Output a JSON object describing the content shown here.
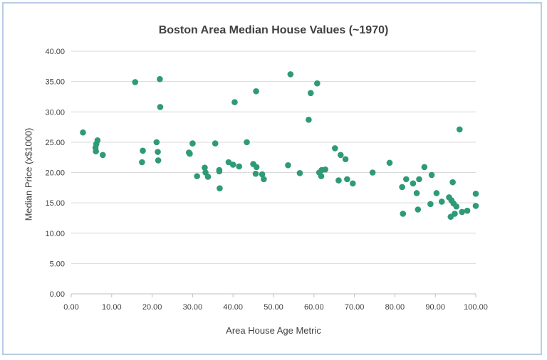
{
  "chart_data": {
    "type": "scatter",
    "title": "Boston Area Median House Values (~1970)",
    "xlabel": "Area House Age Metric",
    "ylabel": "Median Price (x$1000)",
    "xlim": [
      0,
      100
    ],
    "ylim": [
      0,
      40
    ],
    "x_ticks": [
      "0.00",
      "10.00",
      "20.00",
      "30.00",
      "40.00",
      "50.00",
      "60.00",
      "70.00",
      "80.00",
      "90.00",
      "100.00"
    ],
    "y_ticks": [
      "0.00",
      "5.00",
      "10.00",
      "15.00",
      "20.00",
      "25.00",
      "30.00",
      "35.00",
      "40.00"
    ],
    "grid": "horizontal",
    "legend": "none",
    "marker_color": "#2e9a78",
    "points": [
      {
        "x": 2.9,
        "y": 26.6
      },
      {
        "x": 6.0,
        "y": 24.1
      },
      {
        "x": 6.2,
        "y": 24.7
      },
      {
        "x": 6.5,
        "y": 25.3
      },
      {
        "x": 6.1,
        "y": 23.5
      },
      {
        "x": 7.8,
        "y": 22.9
      },
      {
        "x": 15.8,
        "y": 34.9
      },
      {
        "x": 17.7,
        "y": 23.6
      },
      {
        "x": 17.5,
        "y": 21.7
      },
      {
        "x": 21.1,
        "y": 25.0
      },
      {
        "x": 21.4,
        "y": 23.4
      },
      {
        "x": 21.5,
        "y": 22.0
      },
      {
        "x": 22.0,
        "y": 30.8
      },
      {
        "x": 21.9,
        "y": 35.4
      },
      {
        "x": 29.1,
        "y": 23.3
      },
      {
        "x": 29.3,
        "y": 23.1
      },
      {
        "x": 30.0,
        "y": 24.8
      },
      {
        "x": 31.1,
        "y": 19.4
      },
      {
        "x": 33.0,
        "y": 20.8
      },
      {
        "x": 33.2,
        "y": 20.0
      },
      {
        "x": 33.8,
        "y": 19.3
      },
      {
        "x": 35.6,
        "y": 24.8
      },
      {
        "x": 36.6,
        "y": 20.4
      },
      {
        "x": 36.6,
        "y": 20.2
      },
      {
        "x": 36.7,
        "y": 17.4
      },
      {
        "x": 38.9,
        "y": 21.7
      },
      {
        "x": 40.0,
        "y": 21.3
      },
      {
        "x": 40.4,
        "y": 31.6
      },
      {
        "x": 41.5,
        "y": 21.0
      },
      {
        "x": 43.4,
        "y": 25.0
      },
      {
        "x": 45.0,
        "y": 21.4
      },
      {
        "x": 45.6,
        "y": 19.8
      },
      {
        "x": 45.7,
        "y": 33.4
      },
      {
        "x": 45.8,
        "y": 20.9
      },
      {
        "x": 47.2,
        "y": 19.7
      },
      {
        "x": 47.6,
        "y": 18.9
      },
      {
        "x": 53.6,
        "y": 21.2
      },
      {
        "x": 54.2,
        "y": 36.2
      },
      {
        "x": 56.5,
        "y": 19.9
      },
      {
        "x": 58.7,
        "y": 28.7
      },
      {
        "x": 59.2,
        "y": 33.1
      },
      {
        "x": 60.8,
        "y": 34.7
      },
      {
        "x": 61.3,
        "y": 20.0
      },
      {
        "x": 61.8,
        "y": 19.4
      },
      {
        "x": 61.9,
        "y": 20.4
      },
      {
        "x": 62.8,
        "y": 20.5
      },
      {
        "x": 65.2,
        "y": 24.0
      },
      {
        "x": 66.1,
        "y": 18.7
      },
      {
        "x": 66.6,
        "y": 22.9
      },
      {
        "x": 67.8,
        "y": 22.2
      },
      {
        "x": 68.2,
        "y": 18.9
      },
      {
        "x": 69.6,
        "y": 18.2
      },
      {
        "x": 74.5,
        "y": 20.0
      },
      {
        "x": 78.7,
        "y": 21.6
      },
      {
        "x": 81.8,
        "y": 17.6
      },
      {
        "x": 82.0,
        "y": 13.2
      },
      {
        "x": 82.8,
        "y": 18.9
      },
      {
        "x": 84.5,
        "y": 18.2
      },
      {
        "x": 85.4,
        "y": 16.6
      },
      {
        "x": 85.7,
        "y": 13.9
      },
      {
        "x": 86.0,
        "y": 18.9
      },
      {
        "x": 87.3,
        "y": 20.9
      },
      {
        "x": 88.8,
        "y": 14.8
      },
      {
        "x": 89.1,
        "y": 19.6
      },
      {
        "x": 90.3,
        "y": 16.6
      },
      {
        "x": 91.6,
        "y": 15.2
      },
      {
        "x": 93.4,
        "y": 15.9
      },
      {
        "x": 93.8,
        "y": 12.7
      },
      {
        "x": 94.0,
        "y": 15.4
      },
      {
        "x": 94.3,
        "y": 18.4
      },
      {
        "x": 94.5,
        "y": 14.9
      },
      {
        "x": 94.8,
        "y": 13.2
      },
      {
        "x": 95.2,
        "y": 14.4
      },
      {
        "x": 96.0,
        "y": 27.1
      },
      {
        "x": 96.6,
        "y": 13.5
      },
      {
        "x": 97.9,
        "y": 13.7
      },
      {
        "x": 100.0,
        "y": 16.5
      },
      {
        "x": 100.0,
        "y": 14.5
      }
    ]
  }
}
